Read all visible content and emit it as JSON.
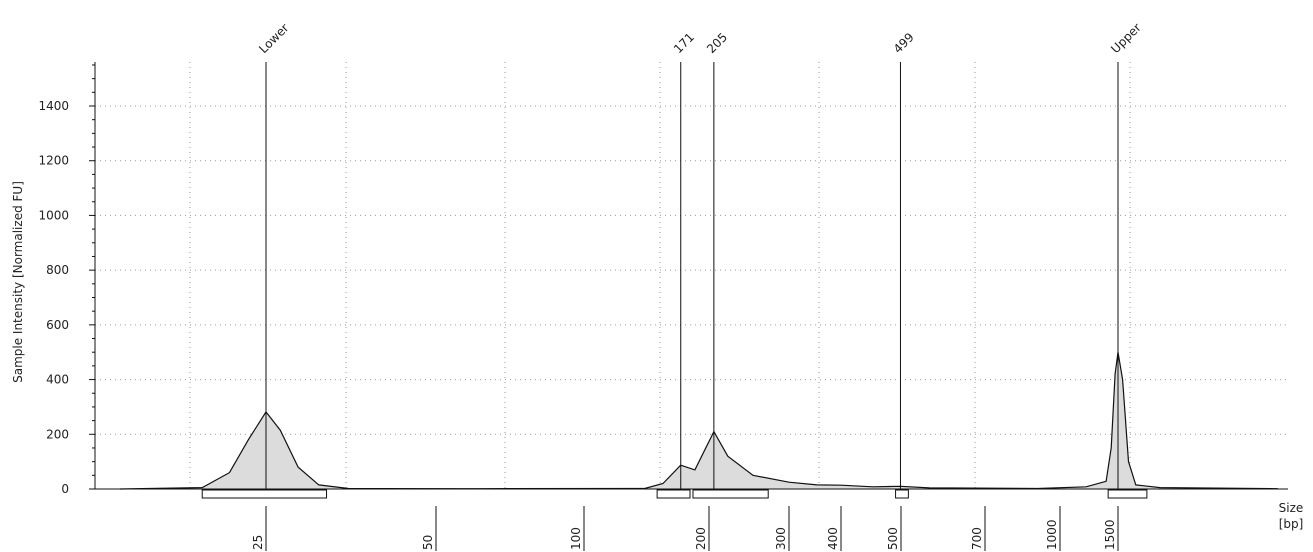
{
  "chart_data": {
    "type": "area",
    "ylabel": "Sample Intensity [Normalized FU]",
    "xlabel_lines": [
      "Size",
      "[bp]"
    ],
    "ylim": [
      0,
      1550
    ],
    "y_ticks": [
      0,
      200,
      400,
      600,
      800,
      1000,
      1200,
      1400
    ],
    "x_ticks": [
      "25",
      "50",
      "100",
      "200",
      "300",
      "400",
      "500",
      "700",
      "1000",
      "1500"
    ],
    "grid": "dotted",
    "peak_labels": [
      "Lower",
      "171",
      "205",
      "499",
      "Upper"
    ],
    "trace": [
      {
        "size_bp": 15,
        "fu": 0
      },
      {
        "size_bp": 20,
        "fu": 5
      },
      {
        "size_bp": 22,
        "fu": 60
      },
      {
        "size_bp": 23.5,
        "fu": 180
      },
      {
        "size_bp": 25,
        "fu": 282
      },
      {
        "size_bp": 26.5,
        "fu": 215
      },
      {
        "size_bp": 28.5,
        "fu": 80
      },
      {
        "size_bp": 31,
        "fu": 15
      },
      {
        "size_bp": 35,
        "fu": 2
      },
      {
        "size_bp": 60,
        "fu": 1
      },
      {
        "size_bp": 140,
        "fu": 2
      },
      {
        "size_bp": 155,
        "fu": 20
      },
      {
        "size_bp": 171,
        "fu": 87
      },
      {
        "size_bp": 185,
        "fu": 70
      },
      {
        "size_bp": 195,
        "fu": 140
      },
      {
        "size_bp": 205,
        "fu": 210
      },
      {
        "size_bp": 220,
        "fu": 120
      },
      {
        "size_bp": 250,
        "fu": 50
      },
      {
        "size_bp": 300,
        "fu": 25
      },
      {
        "size_bp": 350,
        "fu": 15
      },
      {
        "size_bp": 400,
        "fu": 14
      },
      {
        "size_bp": 450,
        "fu": 8
      },
      {
        "size_bp": 499,
        "fu": 10
      },
      {
        "size_bp": 560,
        "fu": 4
      },
      {
        "size_bp": 900,
        "fu": 2
      },
      {
        "size_bp": 1200,
        "fu": 8
      },
      {
        "size_bp": 1380,
        "fu": 28
      },
      {
        "size_bp": 1430,
        "fu": 150
      },
      {
        "size_bp": 1470,
        "fu": 420
      },
      {
        "size_bp": 1500,
        "fu": 500
      },
      {
        "size_bp": 1530,
        "fu": 400
      },
      {
        "size_bp": 1570,
        "fu": 100
      },
      {
        "size_bp": 1620,
        "fu": 15
      },
      {
        "size_bp": 1800,
        "fu": 5
      },
      {
        "size_bp": 3000,
        "fu": 1
      }
    ],
    "peaks": [
      {
        "label": "Lower",
        "size_bp": 25,
        "region_bp": [
          20,
          32
        ]
      },
      {
        "label": "171",
        "size_bp": 171,
        "region_bp": [
          150,
          180
        ]
      },
      {
        "label": "205",
        "size_bp": 205,
        "region_bp": [
          183,
          270
        ]
      },
      {
        "label": "499",
        "size_bp": 499,
        "region_bp": [
          490,
          515
        ]
      },
      {
        "label": "Upper",
        "size_bp": 1500,
        "region_bp": [
          1400,
          1700
        ]
      }
    ]
  }
}
